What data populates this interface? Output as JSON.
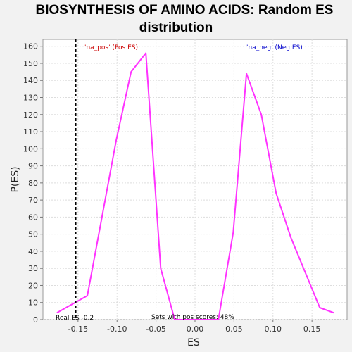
{
  "chart_data": {
    "type": "line",
    "title_line1": "BIOSYNTHESIS OF AMINO ACIDS: Random ES",
    "title_line2": "distribution",
    "xlabel": "ES",
    "ylabel": "P(ES)",
    "xlim": [
      -0.195,
      0.195
    ],
    "ylim": [
      0,
      164
    ],
    "x_ticks": [
      -0.15,
      -0.1,
      -0.05,
      0.0,
      0.05,
      0.1,
      0.15
    ],
    "x_tick_labels": [
      "-0.15",
      "-0.10",
      "-0.05",
      "0.00",
      "0.05",
      "0.10",
      "0.15"
    ],
    "y_ticks": [
      0,
      10,
      20,
      30,
      40,
      50,
      60,
      70,
      80,
      90,
      100,
      110,
      120,
      130,
      140,
      150,
      160
    ],
    "y_tick_labels": [
      "0",
      "10",
      "20",
      "30",
      "40",
      "50",
      "60",
      "70",
      "80",
      "90",
      "100",
      "110",
      "120",
      "130",
      "140",
      "150",
      "160"
    ],
    "grid": true,
    "series": [
      {
        "color": "#ff33ff",
        "points": [
          [
            -0.177,
            4
          ],
          [
            -0.138,
            14
          ],
          [
            -0.101,
            105
          ],
          [
            -0.082,
            145
          ],
          [
            -0.063,
            156
          ],
          [
            -0.044,
            30
          ],
          [
            -0.026,
            0
          ],
          [
            -0.007,
            0
          ],
          [
            0.011,
            0
          ],
          [
            0.03,
            0
          ],
          [
            0.049,
            51
          ],
          [
            0.066,
            144
          ],
          [
            0.085,
            120
          ],
          [
            0.104,
            74
          ],
          [
            0.123,
            48
          ],
          [
            0.141,
            28
          ],
          [
            0.16,
            7
          ],
          [
            0.178,
            4
          ]
        ]
      }
    ],
    "real_es_line": {
      "x": -0.153,
      "style": "dashed",
      "color": "#000000"
    },
    "annotations": {
      "na_pos": {
        "text": "'na_pos' (Pos ES)",
        "color": "#cc0000"
      },
      "na_neg": {
        "text": "'na_neg' (Neg ES)",
        "color": "#0000cc"
      },
      "real_es": {
        "text": "Real ES -0.2",
        "color": "#000000"
      },
      "pos_scores": {
        "text": "Sets with pos scores: 48%",
        "color": "#000000"
      }
    }
  }
}
